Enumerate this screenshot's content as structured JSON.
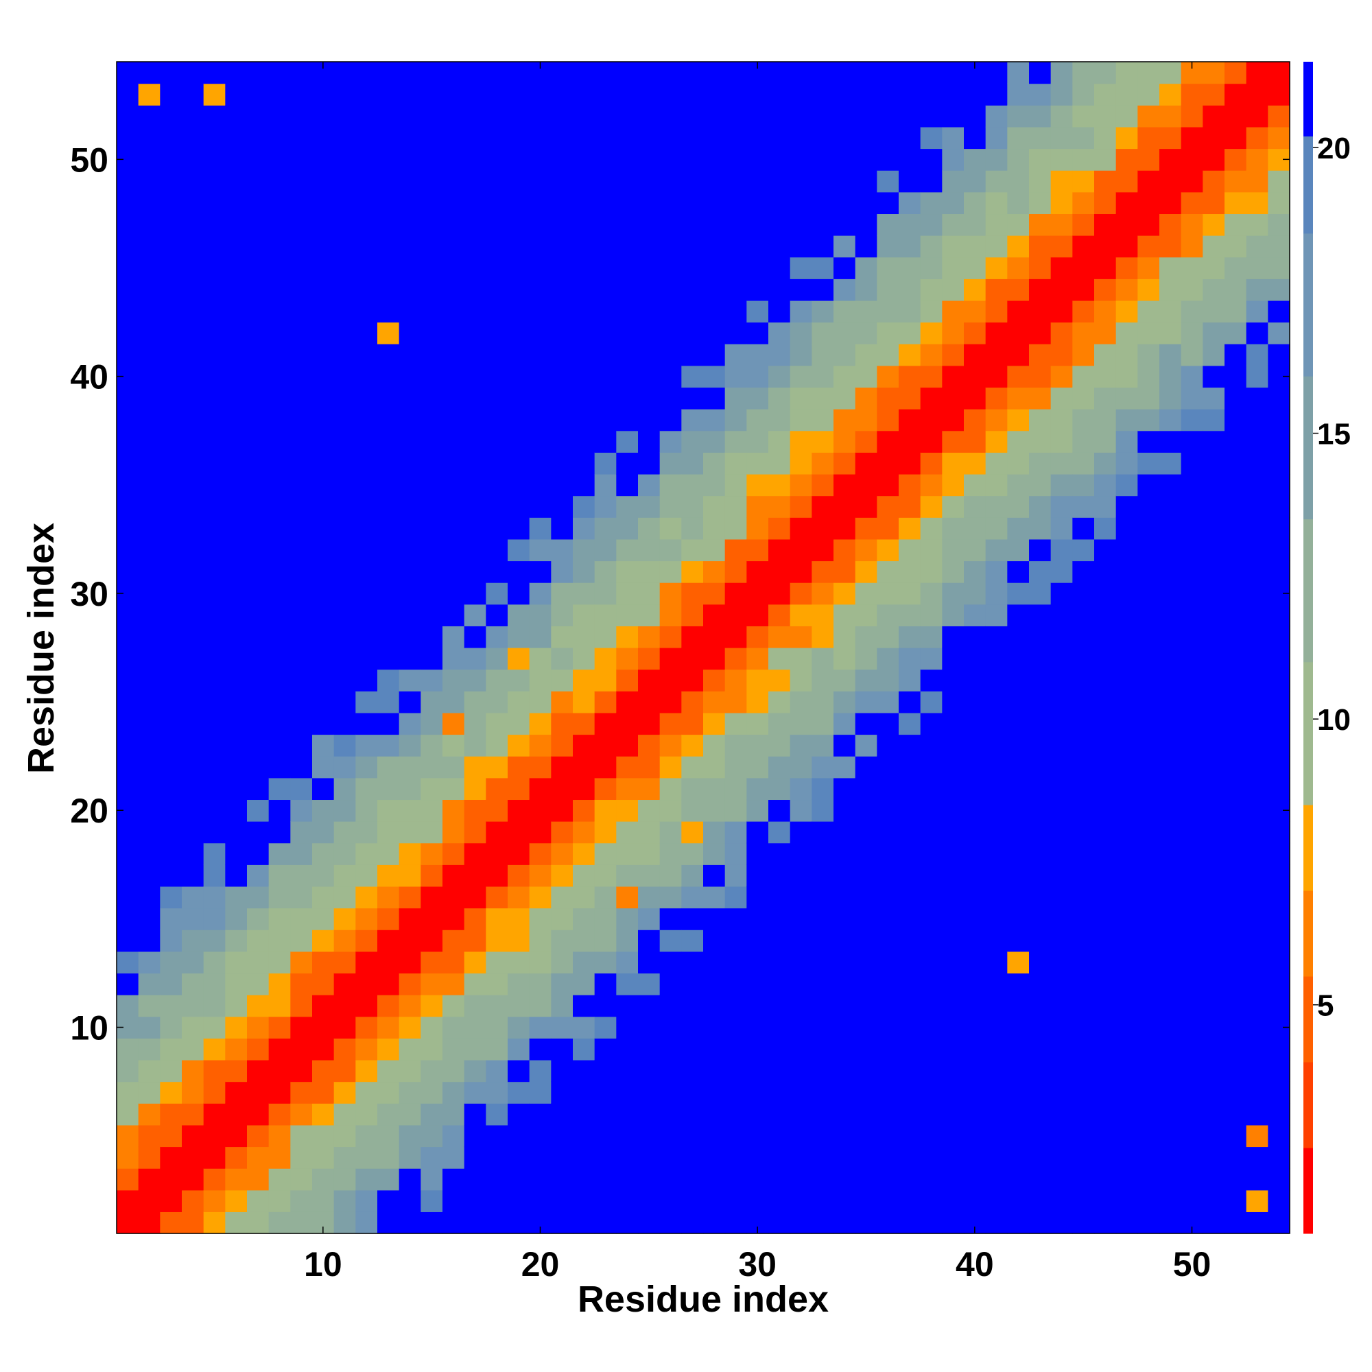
{
  "chart_data": {
    "type": "heatmap",
    "title": "",
    "xlabel": "Residue index",
    "ylabel": "Residue index",
    "x_range": [
      1,
      54
    ],
    "y_range": [
      1,
      54
    ],
    "x_ticks": [
      10,
      20,
      30,
      40,
      50
    ],
    "y_ticks": [
      10,
      20,
      30,
      40,
      50
    ],
    "x_tick_labels": [
      "10",
      "20",
      "30",
      "40",
      "50"
    ],
    "y_tick_labels": [
      "10",
      "20",
      "30",
      "40",
      "50"
    ],
    "colorbar": {
      "min": 1,
      "max": 21.5,
      "ticks": [
        5,
        10,
        15,
        20
      ],
      "tick_labels": [
        "5",
        "10",
        "15",
        "20"
      ],
      "levels": [
        {
          "upto": 2.5,
          "color": "#ff0000"
        },
        {
          "upto": 4.0,
          "color": "#ff4000"
        },
        {
          "upto": 5.5,
          "color": "#ff6000"
        },
        {
          "upto": 7.0,
          "color": "#ff8000"
        },
        {
          "upto": 8.5,
          "color": "#ffa500"
        },
        {
          "upto": 11.0,
          "color": "#9fb98f"
        },
        {
          "upto": 13.5,
          "color": "#93b099"
        },
        {
          "upto": 16.0,
          "color": "#7ea0a7"
        },
        {
          "upto": 18.5,
          "color": "#6f95b6"
        },
        {
          "upto": 20.2,
          "color": "#5a86bd"
        },
        {
          "upto": 99,
          "color": "#0000ff"
        }
      ]
    },
    "description_of_values": "pairwise residue distance map; matrix values are approximate distances",
    "special_cells": [
      {
        "x": 2,
        "y": 53,
        "value": 8
      },
      {
        "x": 5,
        "y": 53,
        "value": 8
      },
      {
        "x": 13,
        "y": 42,
        "value": 8
      },
      {
        "x": 42,
        "y": 13,
        "value": 8
      },
      {
        "x": 53,
        "y": 5,
        "value": 7
      },
      {
        "x": 53,
        "y": 2,
        "value": 8
      },
      {
        "x": 24,
        "y": 16,
        "value": 6.5
      },
      {
        "x": 16,
        "y": 24,
        "value": 6.5
      },
      {
        "x": 19,
        "y": 27,
        "value": 8
      },
      {
        "x": 27,
        "y": 19,
        "value": 8
      }
    ],
    "band_profile": [
      {
        "offset": 0,
        "value": 1.5
      },
      {
        "offset": 1,
        "value": 2
      },
      {
        "offset": 2,
        "value": 4.5
      },
      {
        "offset": 3,
        "value": 6
      },
      {
        "offset": 4,
        "value": 7.5
      },
      {
        "offset": 5,
        "value": 9.5
      },
      {
        "offset": 6,
        "value": 10.5
      },
      {
        "offset": 7,
        "value": 11.5
      },
      {
        "offset": 8,
        "value": 12.5
      },
      {
        "offset": 9,
        "value": 14
      },
      {
        "offset": 10,
        "value": 15.5
      },
      {
        "offset": 11,
        "value": 17
      },
      {
        "offset": 12,
        "value": 18.5
      },
      {
        "offset": 13,
        "value": 19.5
      }
    ],
    "background_value": 21.5
  }
}
